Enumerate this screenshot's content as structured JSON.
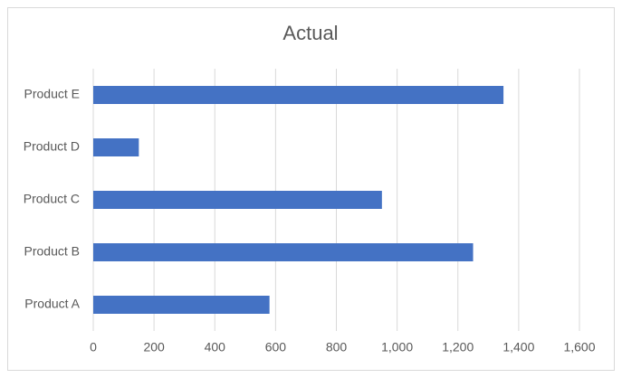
{
  "chart_data": {
    "type": "bar",
    "orientation": "horizontal",
    "title": "Actual",
    "categories": [
      "Product A",
      "Product B",
      "Product C",
      "Product D",
      "Product E"
    ],
    "values": [
      580,
      1250,
      950,
      150,
      1350
    ],
    "color": "#4472c4",
    "xlim": [
      0,
      1600
    ],
    "xticks": [
      0,
      200,
      400,
      600,
      800,
      {
        "value": 1000,
        "label": "1,000"
      },
      {
        "value": 1200,
        "label": "1,200"
      },
      {
        "value": 1400,
        "label": "1,400"
      },
      {
        "value": 1600,
        "label": "1,600"
      }
    ],
    "grid": true
  }
}
